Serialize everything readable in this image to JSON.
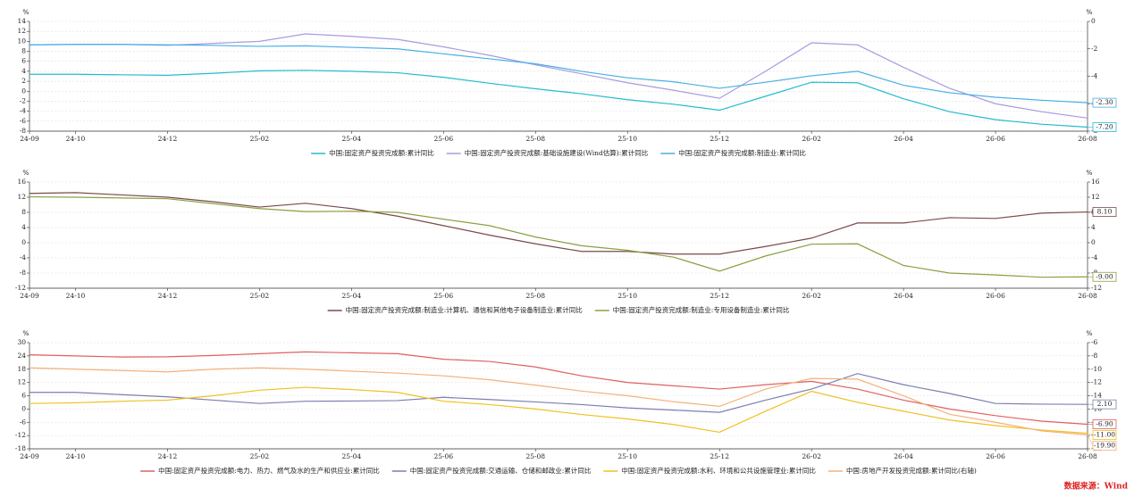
{
  "source": "数据来源：Wind",
  "chart_data": [
    {
      "type": "line",
      "ylabel": "%",
      "y2label": "%",
      "categories": [
        "24-09",
        "24-10",
        null,
        "24-12",
        null,
        "25-02",
        null,
        "25-04",
        null,
        "25-06",
        null,
        "25-08",
        null,
        "25-10",
        null,
        "25-12",
        null,
        "26-02",
        null,
        "26-04",
        null,
        "26-06",
        null,
        "26-08"
      ],
      "ylim": [
        -8,
        14
      ],
      "yticks": [
        14,
        12,
        10,
        8,
        6,
        4,
        2,
        0,
        -2,
        -4,
        -6,
        -8
      ],
      "y2lim": [
        -8,
        0
      ],
      "y2ticks": [
        0,
        -2,
        -4,
        -6,
        -8
      ],
      "grid": true,
      "series": [
        {
          "name": "中国:固定资产投资完成额:累计同比",
          "color": "#22bcd0",
          "values": [
            3.4,
            3.4,
            3.3,
            3.2,
            3.6,
            4.1,
            4.2,
            4.0,
            3.7,
            2.8,
            1.6,
            0.5,
            -0.5,
            -1.7,
            -2.6,
            -3.8,
            -1.0,
            1.8,
            1.7,
            -1.5,
            -4.1,
            -5.7,
            -6.6,
            -7.2
          ],
          "value_labels": [
            null,
            null,
            null,
            null,
            null,
            null,
            null,
            null,
            null,
            null,
            null,
            null,
            null,
            null,
            null,
            null,
            null,
            null,
            null,
            null,
            null,
            null,
            null,
            "-7.20"
          ]
        },
        {
          "name": "中国:固定资产投资完成额:基础设施建设(Wind估算):累计同比",
          "color": "#a99be0",
          "values": [
            9.3,
            9.4,
            9.4,
            9.2,
            9.6,
            10.0,
            11.5,
            11.0,
            10.4,
            8.9,
            7.2,
            5.3,
            3.5,
            1.7,
            0.2,
            -1.4,
            4.0,
            9.7,
            9.3,
            4.8,
            0.6,
            -2.5,
            -4.1,
            -5.37
          ]
        },
        {
          "name": "中国:固定资产投资完成额:制造业:累计同比",
          "color": "#4aaee6",
          "values": [
            9.3,
            9.4,
            9.4,
            9.3,
            9.2,
            9.0,
            9.1,
            8.8,
            8.5,
            7.5,
            6.5,
            5.5,
            4.0,
            2.7,
            1.9,
            0.6,
            1.8,
            3.1,
            4.0,
            1.2,
            -0.3,
            -1.2,
            -1.8,
            -2.3
          ],
          "value_labels": [
            null,
            null,
            null,
            null,
            null,
            null,
            null,
            null,
            null,
            null,
            null,
            null,
            null,
            null,
            null,
            null,
            null,
            null,
            null,
            null,
            null,
            null,
            null,
            "-2.30"
          ]
        }
      ]
    },
    {
      "type": "line",
      "ylabel": "%",
      "y2label": "%",
      "categories": [
        "24-09",
        "24-10",
        null,
        "24-12",
        null,
        "25-02",
        null,
        "25-04",
        null,
        "25-06",
        null,
        "25-08",
        null,
        "25-10",
        null,
        "25-12",
        null,
        "26-02",
        null,
        "26-04",
        null,
        "26-06",
        null,
        "26-08"
      ],
      "ylim": [
        -12,
        16
      ],
      "yticks": [
        16,
        12,
        8,
        4,
        0,
        -4,
        -8,
        -12
      ],
      "y2lim": [
        -12,
        16
      ],
      "y2ticks": [
        16,
        12,
        8,
        4,
        0,
        -4,
        -8,
        -12
      ],
      "grid": true,
      "series": [
        {
          "name": "中国:固定资产投资完成额:制造业:计算机、通信和其他电子设备制造业:累计同比",
          "color": "#7a4a4a",
          "values": [
            13.0,
            13.2,
            12.6,
            12.0,
            10.8,
            9.4,
            10.4,
            9.0,
            7.0,
            4.5,
            2.0,
            -0.3,
            -2.3,
            -2.3,
            -3.0,
            -3.0,
            -1.0,
            1.2,
            5.2,
            5.2,
            6.6,
            6.4,
            7.8,
            8.1
          ],
          "value_labels": [
            null,
            null,
            null,
            null,
            null,
            null,
            null,
            null,
            null,
            null,
            null,
            null,
            null,
            null,
            null,
            null,
            null,
            null,
            null,
            null,
            null,
            null,
            null,
            "8.10"
          ]
        },
        {
          "name": "中国:固定资产投资完成额:制造业:专用设备制造业:累计同比",
          "color": "#8aa040",
          "values": [
            12.1,
            12.0,
            11.8,
            11.6,
            10.3,
            9.0,
            8.2,
            8.3,
            8.0,
            6.2,
            4.5,
            1.5,
            -0.8,
            -2.0,
            -3.8,
            -7.5,
            -3.5,
            -0.4,
            -0.3,
            -6.0,
            -8.0,
            -8.5,
            -9.1,
            -9.0
          ],
          "value_labels": [
            null,
            null,
            null,
            null,
            null,
            null,
            null,
            null,
            null,
            null,
            null,
            null,
            null,
            null,
            null,
            null,
            null,
            null,
            null,
            null,
            null,
            null,
            null,
            "-9.00"
          ]
        }
      ]
    },
    {
      "type": "line",
      "ylabel": "%",
      "y2label": "%",
      "categories": [
        "24-09",
        "24-10",
        null,
        "24-12",
        null,
        "25-02",
        null,
        "25-04",
        null,
        "25-06",
        null,
        "25-08",
        null,
        "25-10",
        null,
        "25-12",
        null,
        "26-02",
        null,
        "26-04",
        null,
        "26-06",
        null,
        "26-08"
      ],
      "ylim": [
        -18,
        30
      ],
      "yticks": [
        30,
        24,
        18,
        12,
        6,
        0,
        -6,
        -12,
        -18
      ],
      "y2lim": [
        -22,
        -6
      ],
      "y2ticks": [
        -6,
        -8,
        -10,
        -12,
        -14,
        -16,
        -18,
        -20,
        -22
      ],
      "grid": true,
      "series": [
        {
          "name": "中国:固定资产投资完成额:电力、热力、燃气及水的生产和供应业:累计同比",
          "color": "#e06060",
          "values": [
            24.5,
            24.0,
            23.5,
            23.6,
            24.2,
            25.0,
            25.8,
            25.4,
            25.0,
            22.5,
            21.5,
            19.0,
            15.0,
            12.0,
            10.5,
            9.0,
            11.0,
            12.5,
            9.0,
            4.0,
            0,
            -3.0,
            -5.5,
            -6.9
          ],
          "value_labels": [
            null,
            null,
            null,
            null,
            null,
            null,
            null,
            null,
            null,
            null,
            null,
            null,
            null,
            null,
            null,
            null,
            null,
            null,
            null,
            null,
            null,
            null,
            null,
            "-6.90"
          ]
        },
        {
          "name": "中国:固定资产投资完成额:交通运输、仓储和邮政业:累计同比",
          "color": "#7b7fb0",
          "values": [
            7.5,
            7.5,
            6.5,
            5.5,
            4.0,
            2.5,
            3.5,
            3.6,
            3.8,
            5.3,
            4.3,
            3.2,
            2.0,
            0.5,
            -0.5,
            -1.5,
            4.0,
            9.0,
            16.0,
            11.0,
            7.0,
            2.5,
            2.2,
            2.1
          ],
          "value_labels": [
            null,
            null,
            null,
            null,
            null,
            null,
            null,
            null,
            null,
            null,
            null,
            null,
            null,
            null,
            null,
            null,
            null,
            null,
            null,
            null,
            null,
            null,
            null,
            "2.10"
          ]
        },
        {
          "name": "中国:固定资产投资完成额:水利、环境和公共设施管理业:累计同比",
          "color": "#f0c020",
          "values": [
            2.5,
            2.8,
            3.5,
            4.0,
            6.0,
            8.5,
            9.8,
            8.8,
            7.5,
            3.5,
            2.0,
            0,
            -2.5,
            -4.5,
            -7.0,
            -10.5,
            -1.0,
            8.0,
            3.0,
            -1.0,
            -5.0,
            -7.5,
            -9.5,
            -11.0
          ],
          "value_labels": [
            null,
            null,
            null,
            null,
            null,
            null,
            null,
            null,
            null,
            null,
            null,
            null,
            null,
            null,
            null,
            null,
            null,
            null,
            null,
            null,
            null,
            null,
            null,
            "-11.00"
          ]
        },
        {
          "name": "中国:房地产开发投资完成额:累计同比(右轴)",
          "color": "#f5b07a",
          "axis": "y2",
          "values": [
            -9.8,
            -10.0,
            -10.2,
            -10.4,
            -10.0,
            -9.8,
            -10.0,
            -10.3,
            -10.6,
            -11.0,
            -11.6,
            -12.4,
            -13.3,
            -14.0,
            -14.9,
            -15.6,
            -13.0,
            -11.4,
            -11.5,
            -14.0,
            -16.8,
            -18.0,
            -19.3,
            -19.9
          ],
          "value_labels": [
            null,
            null,
            null,
            null,
            null,
            null,
            null,
            null,
            null,
            null,
            null,
            null,
            null,
            null,
            null,
            null,
            null,
            null,
            null,
            null,
            null,
            null,
            null,
            "-19.90"
          ]
        }
      ]
    }
  ]
}
